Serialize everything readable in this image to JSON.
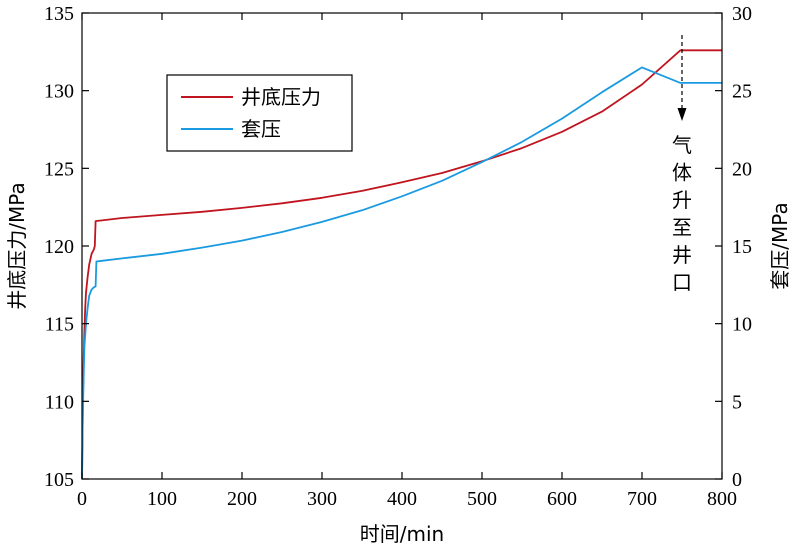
{
  "chart_data": {
    "type": "line",
    "xlabel": "时间/min",
    "ylabel_left": "井底压力/MPa",
    "ylabel_right": "套压/MPa",
    "xlim": [
      0,
      800
    ],
    "ylim_left": [
      105,
      135
    ],
    "ylim_right": [
      0,
      30
    ],
    "x_ticks": [
      0,
      100,
      200,
      300,
      400,
      500,
      600,
      700,
      800
    ],
    "y_ticks_left": [
      105,
      110,
      115,
      120,
      125,
      130,
      135
    ],
    "y_ticks_right": [
      0,
      5,
      10,
      15,
      20,
      25,
      30
    ],
    "grid": false,
    "legend_position": "upper-left",
    "series": [
      {
        "name": "井底压力",
        "axis": "left",
        "color": "#c0141e",
        "points": [
          [
            0,
            105.0
          ],
          [
            1,
            109.5
          ],
          [
            2,
            112.5
          ],
          [
            3,
            114.5
          ],
          [
            4,
            116.0
          ],
          [
            5,
            117.0
          ],
          [
            7,
            118.0
          ],
          [
            9,
            118.8
          ],
          [
            12,
            119.5
          ],
          [
            15,
            119.8
          ],
          [
            16,
            120.0
          ],
          [
            17,
            121.6
          ],
          [
            25,
            121.65
          ],
          [
            50,
            121.8
          ],
          [
            100,
            122.0
          ],
          [
            150,
            122.2
          ],
          [
            200,
            122.45
          ],
          [
            250,
            122.75
          ],
          [
            300,
            123.1
          ],
          [
            350,
            123.55
          ],
          [
            400,
            124.1
          ],
          [
            450,
            124.7
          ],
          [
            500,
            125.45
          ],
          [
            550,
            126.3
          ],
          [
            600,
            127.35
          ],
          [
            650,
            128.65
          ],
          [
            700,
            130.4
          ],
          [
            748,
            132.6
          ],
          [
            800,
            132.6
          ]
        ]
      },
      {
        "name": "套压",
        "axis": "right",
        "color": "#1a9ae0",
        "points": [
          [
            0,
            0.0
          ],
          [
            1,
            4.0
          ],
          [
            2,
            6.5
          ],
          [
            3,
            8.5
          ],
          [
            5,
            10.0
          ],
          [
            7,
            11.0
          ],
          [
            9,
            11.8
          ],
          [
            12,
            12.2
          ],
          [
            15,
            12.35
          ],
          [
            17,
            12.4
          ],
          [
            18,
            14.0
          ],
          [
            25,
            14.05
          ],
          [
            50,
            14.2
          ],
          [
            100,
            14.5
          ],
          [
            150,
            14.9
          ],
          [
            200,
            15.35
          ],
          [
            250,
            15.9
          ],
          [
            300,
            16.55
          ],
          [
            350,
            17.3
          ],
          [
            400,
            18.2
          ],
          [
            450,
            19.2
          ],
          [
            500,
            20.4
          ],
          [
            550,
            21.7
          ],
          [
            600,
            23.2
          ],
          [
            650,
            24.9
          ],
          [
            700,
            26.5
          ],
          [
            748,
            25.5
          ],
          [
            800,
            25.5
          ]
        ]
      }
    ],
    "annotation": {
      "text": [
        "气",
        "体",
        "升",
        "至",
        "井",
        "口"
      ],
      "x": 750
    }
  }
}
